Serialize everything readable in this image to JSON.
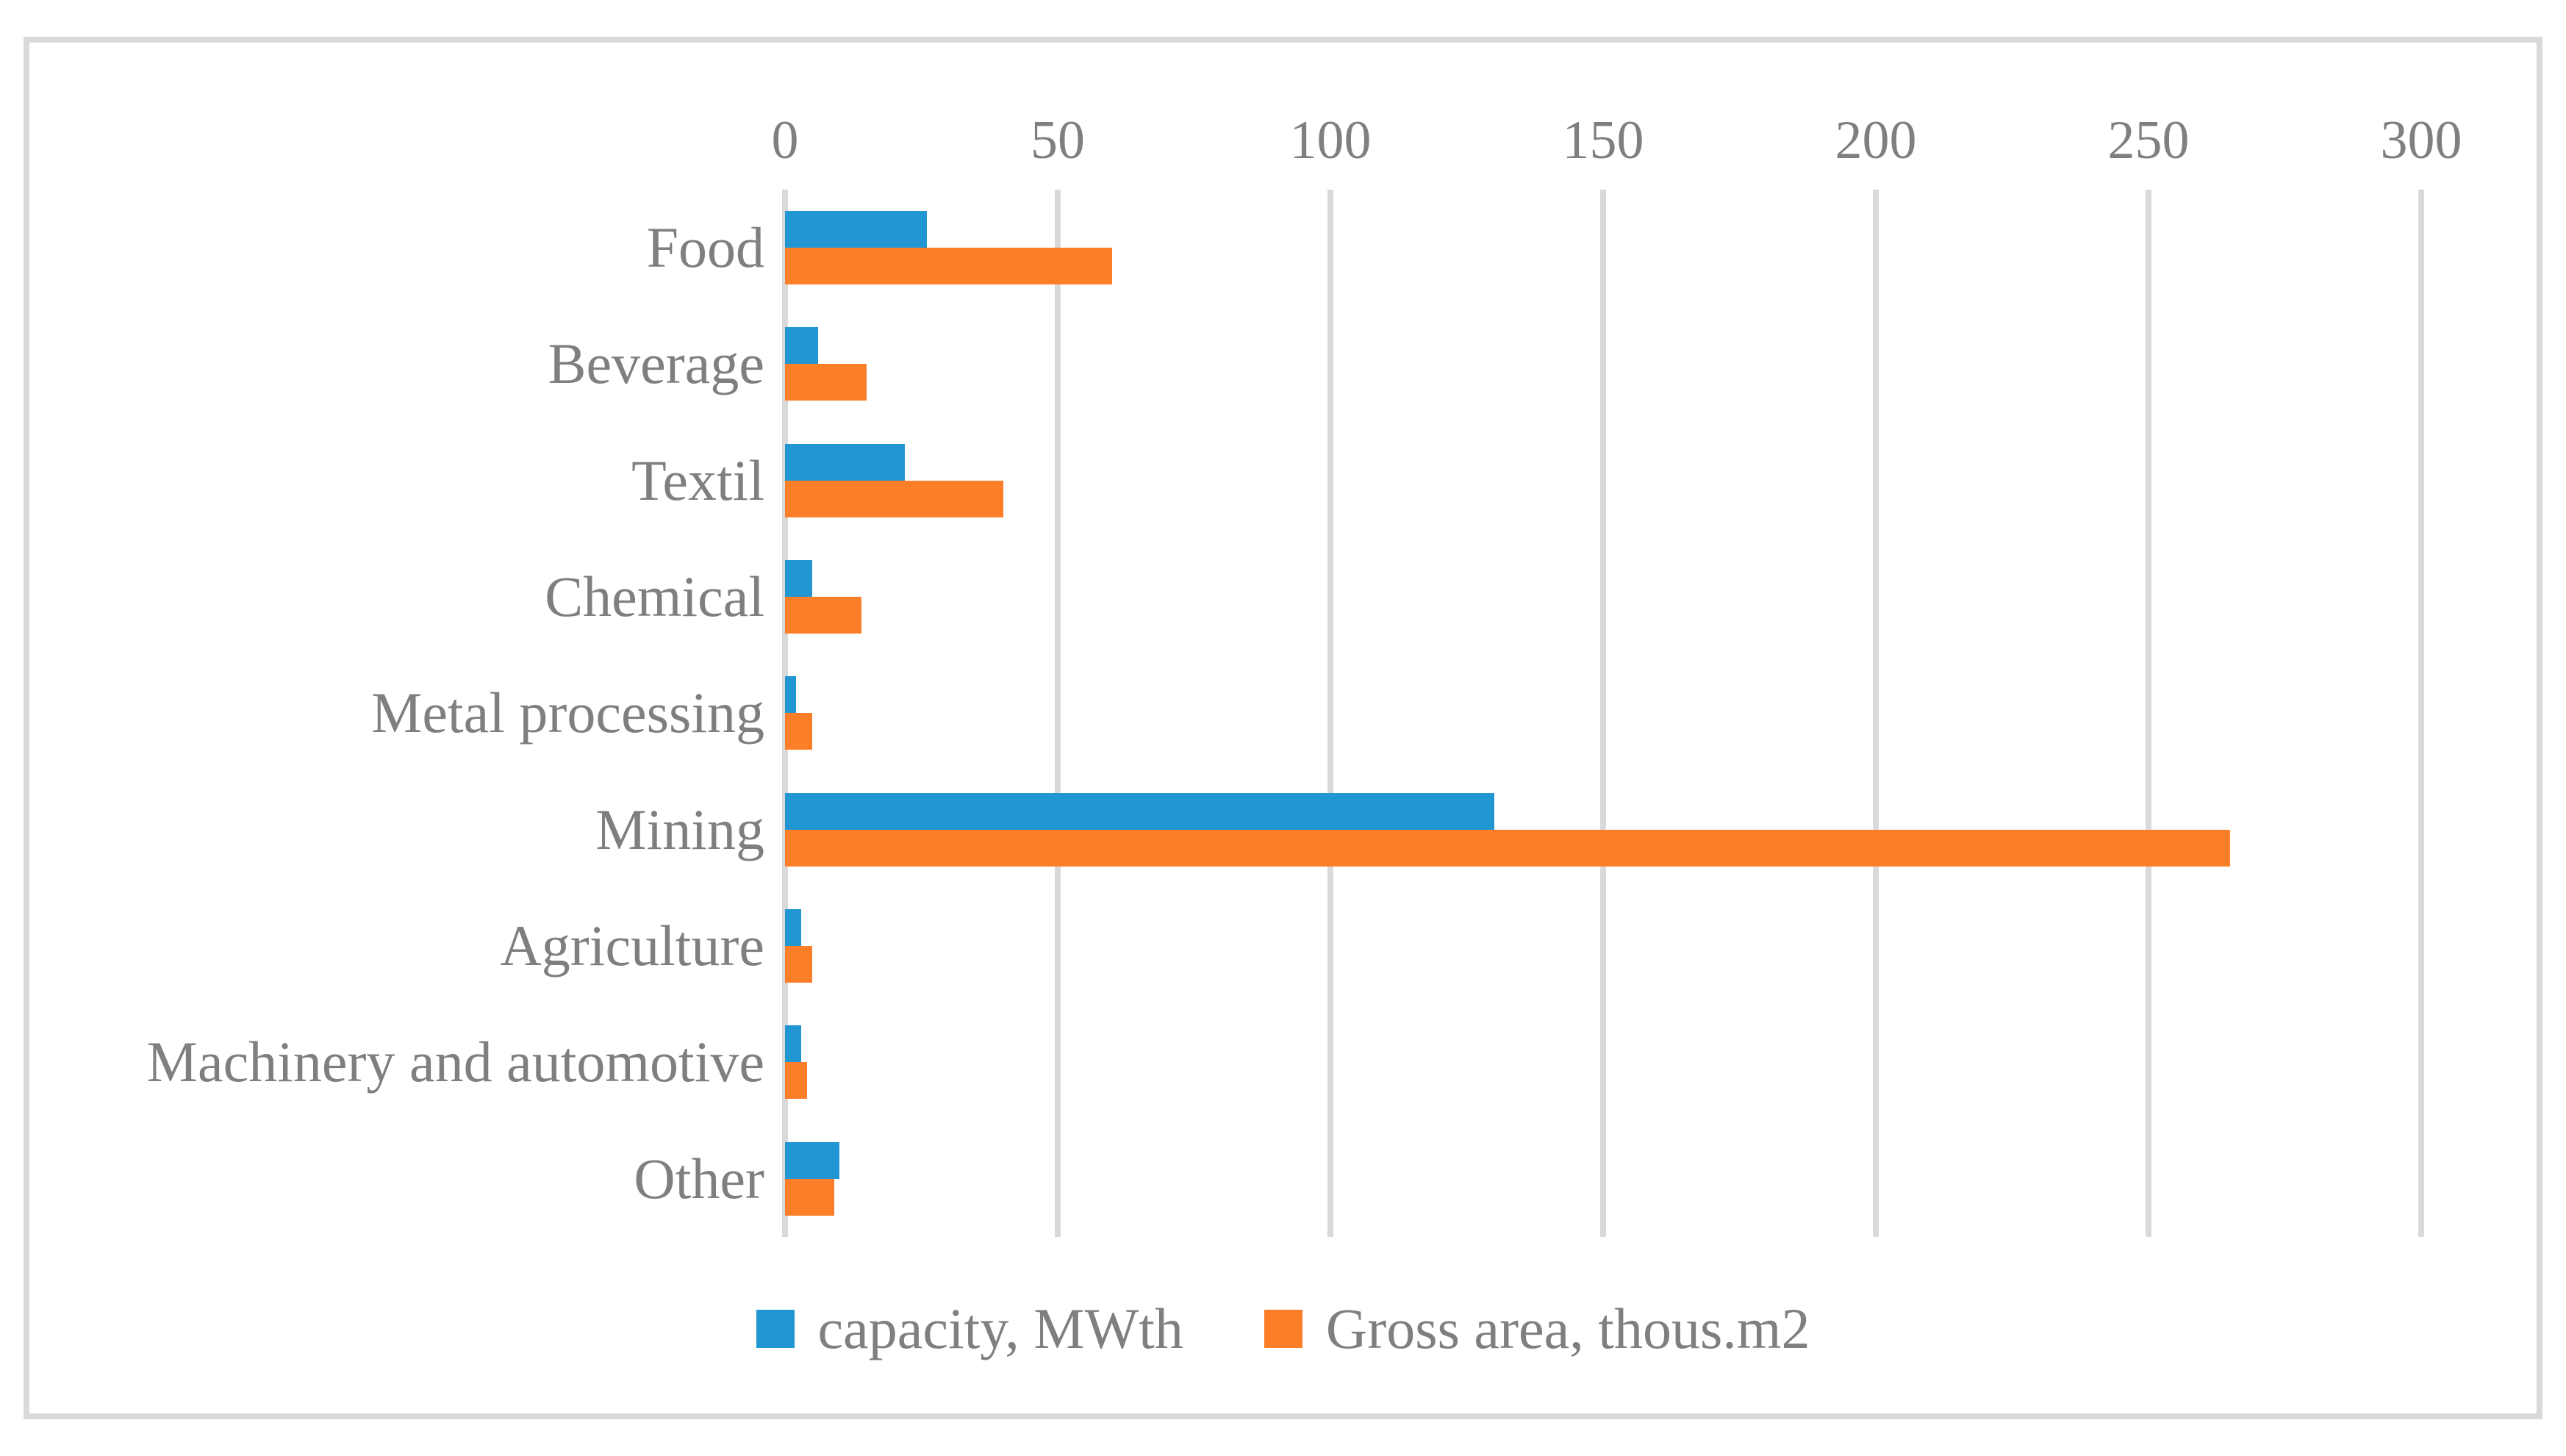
{
  "figure": {
    "background": "#FFFFFF",
    "frame_border_color": "#D9D9D9",
    "text_color": "#7F7F7F"
  },
  "chart_data": {
    "type": "bar",
    "orientation": "horizontal",
    "title": "",
    "xlabel": "",
    "ylabel": "",
    "categories": [
      "Food",
      "Beverage",
      "Textil",
      "Chemical",
      "Metal processing",
      "Mining",
      "Agriculture",
      "Machinery and automotive",
      "Other"
    ],
    "series": [
      {
        "name": "capacity, MWth",
        "color": "#2196D3",
        "values": [
          26,
          6,
          22,
          5,
          2,
          130,
          3,
          3,
          10
        ]
      },
      {
        "name": "Gross area, thous.m2",
        "color": "#FD7E28",
        "values": [
          60,
          15,
          40,
          14,
          5,
          265,
          5,
          4,
          9
        ]
      }
    ],
    "xlim": [
      0,
      300
    ],
    "x_ticks": [
      0,
      50,
      100,
      150,
      200,
      250,
      300
    ],
    "grid": "vertical",
    "gridline_color": "#D9D9D9",
    "legend_position": "bottom",
    "x_axis_position": "top"
  }
}
